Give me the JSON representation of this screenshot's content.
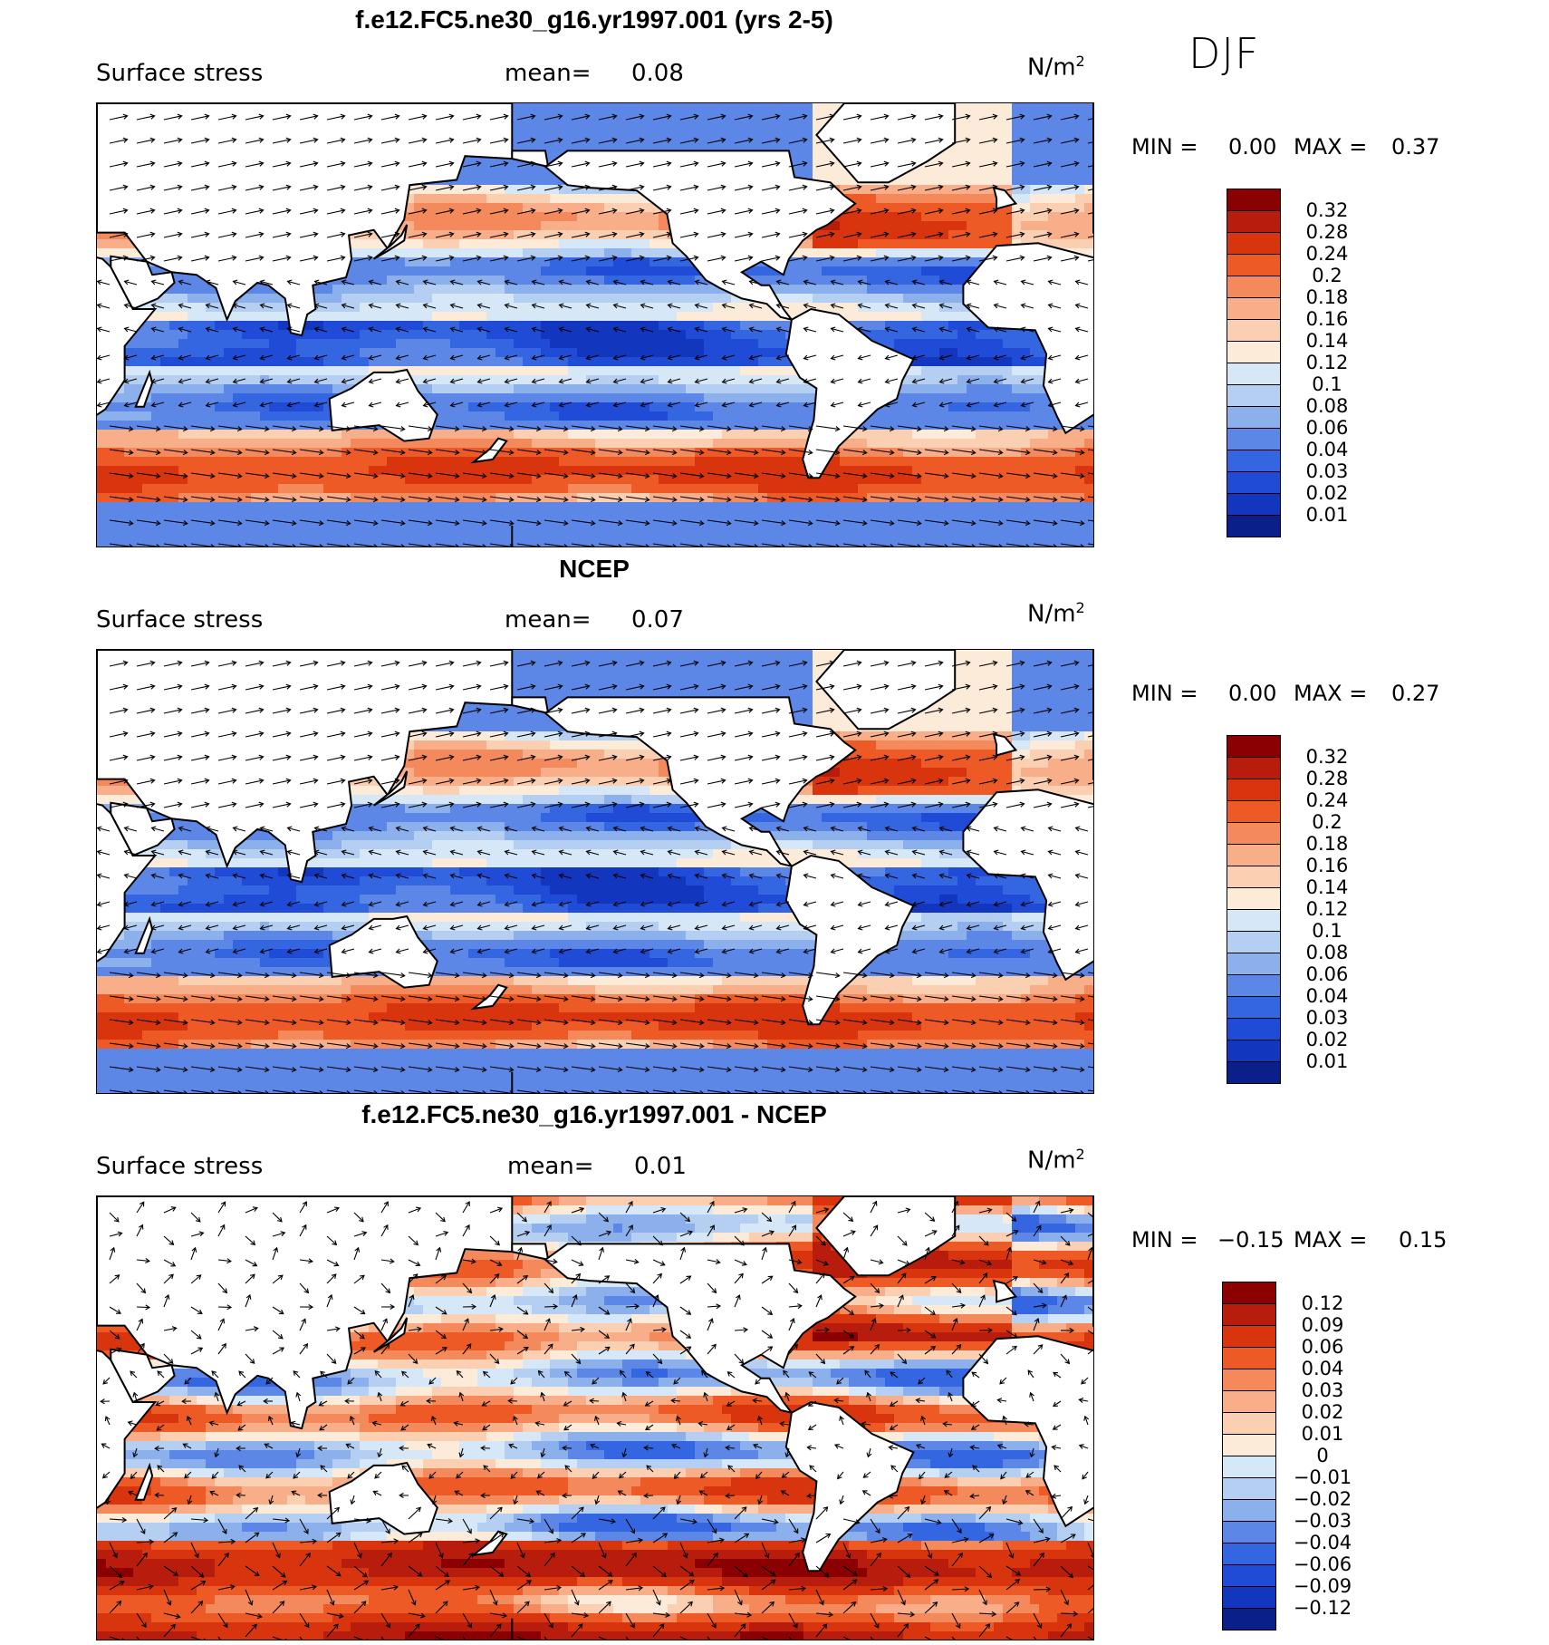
{
  "season": "DJF",
  "panels": [
    {
      "title": "f.e12.FC5.ne30_g16.yr1997.001 (yrs 2-5)",
      "variable": "Surface stress",
      "mean_label": "mean=",
      "mean_value": "0.08",
      "units": "N/m",
      "units_exp": "2",
      "min_label": "MIN =",
      "min_value": "0.00",
      "max_label": "MAX =",
      "max_value": "0.37",
      "colorbar": {
        "labels": [
          "0.32",
          "0.28",
          "0.24",
          "0.2",
          "0.18",
          "0.16",
          "0.14",
          "0.12",
          "0.1",
          "0.08",
          "0.06",
          "0.04",
          "0.03",
          "0.02",
          "0.01"
        ],
        "colors": [
          "#8b0000",
          "#b71c0c",
          "#d8350f",
          "#ed5a26",
          "#f48a5c",
          "#f9ae8a",
          "#fbcfb2",
          "#fdebd9",
          "#d6e7f7",
          "#b5cff2",
          "#8bb0ec",
          "#5c87e6",
          "#3366e0",
          "#1f4bd6",
          "#1236bd",
          "#0b1f8a"
        ]
      },
      "mode": "abs"
    },
    {
      "title": "NCEP",
      "variable": "Surface stress",
      "mean_label": "mean=",
      "mean_value": "0.07",
      "units": "N/m",
      "units_exp": "2",
      "min_label": "MIN =",
      "min_value": "0.00",
      "max_label": "MAX =",
      "max_value": "0.27",
      "colorbar": {
        "labels": [
          "0.32",
          "0.28",
          "0.24",
          "0.2",
          "0.18",
          "0.16",
          "0.14",
          "0.12",
          "0.1",
          "0.08",
          "0.06",
          "0.04",
          "0.03",
          "0.02",
          "0.01"
        ],
        "colors": [
          "#8b0000",
          "#b71c0c",
          "#d8350f",
          "#ed5a26",
          "#f48a5c",
          "#f9ae8a",
          "#fbcfb2",
          "#fdebd9",
          "#d6e7f7",
          "#b5cff2",
          "#8bb0ec",
          "#5c87e6",
          "#3366e0",
          "#1f4bd6",
          "#1236bd",
          "#0b1f8a"
        ]
      },
      "mode": "abs"
    },
    {
      "title": "f.e12.FC5.ne30_g16.yr1997.001 - NCEP",
      "variable": "Surface stress",
      "mean_label": "mean=",
      "mean_value": "0.01",
      "units": "N/m",
      "units_exp": "2",
      "min_label": "MIN =",
      "min_value": "−0.15",
      "max_label": "MAX =",
      "max_value": "0.15",
      "colorbar": {
        "labels": [
          "0.12",
          "0.09",
          "0.06",
          "0.04",
          "0.03",
          "0.02",
          "0.01",
          "0",
          "−0.01",
          "−0.02",
          "−0.03",
          "−0.04",
          "−0.06",
          "−0.09",
          "−0.12"
        ],
        "colors": [
          "#8b0000",
          "#b71c0c",
          "#d8350f",
          "#ed5a26",
          "#f48a5c",
          "#f9ae8a",
          "#fbcfb2",
          "#fdebd9",
          "#d6e7f7",
          "#b5cff2",
          "#8bb0ec",
          "#5c87e6",
          "#3366e0",
          "#1f4bd6",
          "#1236bd",
          "#0b1f8a"
        ]
      },
      "mode": "diff"
    }
  ]
}
